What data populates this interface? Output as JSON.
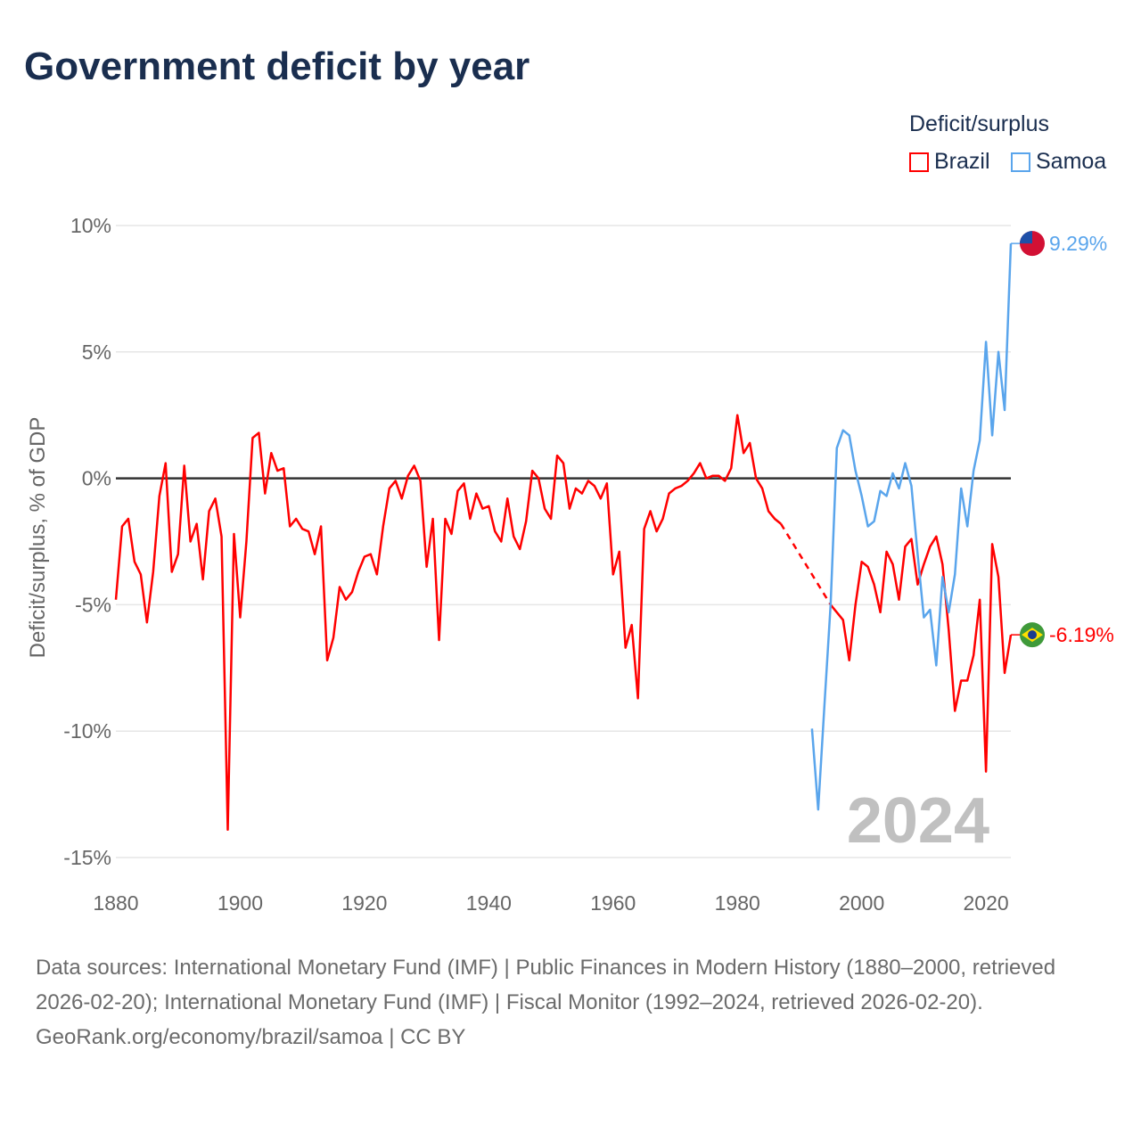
{
  "title": "Government deficit by year",
  "legend": {
    "title": "Deficit/surplus",
    "items": [
      {
        "name": "Brazil",
        "color": "#ff0000"
      },
      {
        "name": "Samoa",
        "color": "#5aa5ec"
      }
    ]
  },
  "year_watermark": "2024",
  "footer": {
    "sources": "Data sources: International Monetary Fund (IMF) | Public Finances in Modern History (1880–2000, retrieved 2026-02-20); International Monetary Fund (IMF) | Fiscal Monitor (1992–2024, retrieved 2026-02-20).",
    "credit": "GeoRank.org/economy/brazil/samoa | CC BY"
  },
  "chart_data": {
    "type": "line",
    "title": "Government deficit by year",
    "xlabel": "",
    "ylabel": "Deficit/surplus, % of GDP",
    "xlim": [
      1880,
      2024
    ],
    "ylim": [
      -15,
      10
    ],
    "x_ticks": [
      "1880",
      "1900",
      "1920",
      "1940",
      "1960",
      "1980",
      "2000",
      "2020"
    ],
    "y_ticks": [
      {
        "v": 10,
        "label": "10%"
      },
      {
        "v": 5,
        "label": "5%"
      },
      {
        "v": 0,
        "label": "0%"
      },
      {
        "v": -5,
        "label": "-5%"
      },
      {
        "v": -10,
        "label": "-10%"
      },
      {
        "v": -15,
        "label": "-15%"
      }
    ],
    "grid": true,
    "legend_position": "top-right",
    "series": [
      {
        "name": "Brazil",
        "color": "#ff0000",
        "end_label": "-6.19%",
        "start_year": 1880,
        "values": [
          -4.8,
          -1.9,
          -1.6,
          -3.3,
          -3.8,
          -5.7,
          -3.7,
          -0.7,
          0.6,
          -3.7,
          -3.0,
          0.5,
          -2.5,
          -1.8,
          -4.0,
          -1.3,
          -0.8,
          -2.3,
          -13.9,
          -2.2,
          -5.5,
          -2.5,
          1.6,
          1.8,
          -0.6,
          1.0,
          0.3,
          0.4,
          -1.9,
          -1.6,
          -2.0,
          -2.1,
          -3.0,
          -1.9,
          -7.2,
          -6.3,
          -4.3,
          -4.8,
          -4.5,
          -3.7,
          -3.1,
          -3.0,
          -3.8,
          -1.9,
          -0.4,
          -0.1,
          -0.8,
          0.1,
          0.5,
          -0.1,
          -3.5,
          -1.6,
          -6.4,
          -1.6,
          -2.2,
          -0.5,
          -0.2,
          -1.6,
          -0.6,
          -1.2,
          -1.1,
          -2.1,
          -2.5,
          -0.8,
          -2.3,
          -2.8,
          -1.7,
          0.3,
          0.0,
          -1.2,
          -1.6,
          0.9,
          0.6,
          -1.2,
          -0.4,
          -0.6,
          -0.1,
          -0.3,
          -0.8,
          -0.2,
          -3.8,
          -2.9,
          -6.7,
          -5.8,
          -8.7,
          -2.0,
          -1.3,
          -2.1,
          -1.6,
          -0.6,
          -0.4,
          -0.3,
          -0.1,
          0.2,
          0.6,
          0.0,
          0.1,
          0.1,
          -0.1,
          0.4,
          2.5,
          1.0,
          1.4,
          0.0,
          -0.4,
          -1.3,
          -1.6,
          -1.8,
          null,
          null,
          null,
          null,
          null,
          null,
          null,
          -5.0,
          -5.3,
          -5.6,
          -7.2,
          -5.0,
          -3.3,
          -3.5,
          -4.2,
          -5.3,
          -2.9,
          -3.4,
          -4.8,
          -2.7,
          -2.4,
          -4.2,
          -3.4,
          -2.7,
          -2.3,
          -3.4,
          -6.0,
          -9.2,
          -8.0,
          -8.0,
          -7.0,
          -4.8,
          -11.6,
          -2.6,
          -3.9,
          -7.7,
          -6.19
        ]
      },
      {
        "name": "Samoa",
        "color": "#5aa5ec",
        "end_label": "9.29%",
        "start_year": 1992,
        "values": [
          -9.9,
          -13.1,
          -9.0,
          -5.0,
          1.2,
          1.9,
          1.7,
          0.3,
          -0.7,
          -1.9,
          -1.7,
          -0.5,
          -0.7,
          0.2,
          -0.4,
          0.6,
          -0.3,
          -3.0,
          -5.5,
          -5.2,
          -7.4,
          -3.9,
          -5.3,
          -3.8,
          -0.4,
          -1.9,
          0.3,
          1.5,
          5.4,
          1.7,
          5.0,
          2.7,
          9.29
        ]
      }
    ]
  }
}
